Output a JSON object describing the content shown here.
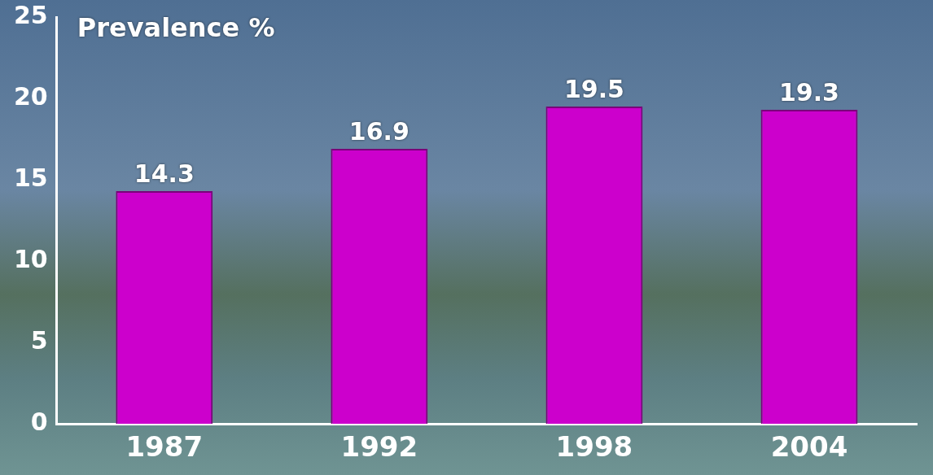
{
  "chart_data": {
    "type": "bar",
    "y_label": "Prevalence %",
    "categories": [
      "1987",
      "1992",
      "1998",
      "2004"
    ],
    "values": [
      14.3,
      16.9,
      19.5,
      19.3
    ],
    "color": "#cc00cc",
    "ylim": [
      0,
      25
    ],
    "yticks": [
      0,
      5,
      10,
      15,
      20,
      25
    ],
    "grid": false,
    "data_labels": true
  }
}
